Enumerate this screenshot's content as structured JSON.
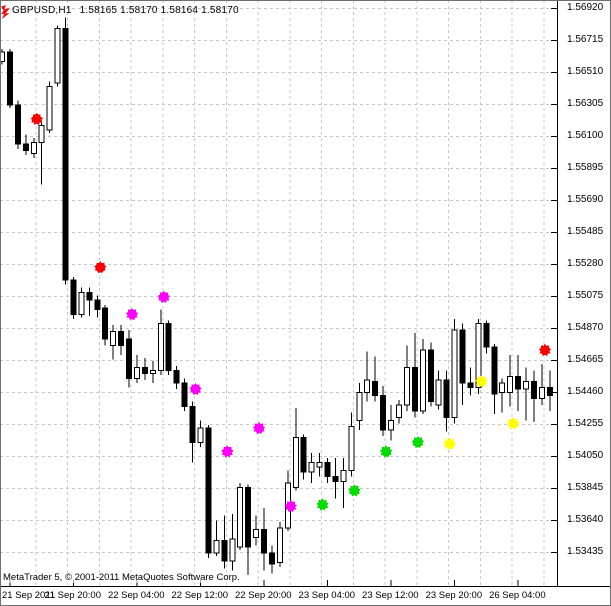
{
  "header": {
    "symbol_timeframe": "GBPUSD,H1",
    "quote_line": "1.58165 1.58170 1.58164 1.58170"
  },
  "copyright": "MetaTrader 5, © 2001-2011 MetaQuotes Software Corp.",
  "y_axis": {
    "labels": [
      "1.56920",
      "1.56715",
      "1.56510",
      "1.56305",
      "1.56100",
      "1.55895",
      "1.55690",
      "1.55485",
      "1.55280",
      "1.55075",
      "1.54870",
      "1.54665",
      "1.54460",
      "1.54255",
      "1.54050",
      "1.53845",
      "1.53640",
      "1.53435"
    ]
  },
  "x_axis": {
    "labels": [
      {
        "text": "21 Sep 2011",
        "index": 1
      },
      {
        "text": "21 Sep 20:00",
        "index": 9
      },
      {
        "text": "22 Sep 04:00",
        "index": 17
      },
      {
        "text": "22 Sep 12:00",
        "index": 25
      },
      {
        "text": "22 Sep 20:00",
        "index": 33
      },
      {
        "text": "23 Sep 04:00",
        "index": 41
      },
      {
        "text": "23 Sep 12:00",
        "index": 49
      },
      {
        "text": "23 Sep 20:00",
        "index": 57
      },
      {
        "text": "26 Sep 04:00",
        "index": 65
      }
    ]
  },
  "chart_data": {
    "type": "candlestick",
    "title": "GBPUSD,H1",
    "symbol": "GBPUSD",
    "timeframe": "H1",
    "header_quotes": {
      "open": "1.58165",
      "high": "1.58170",
      "low": "1.58164",
      "close": "1.58170"
    },
    "ylim": [
      1.53435,
      1.5692
    ],
    "y_step": 0.00205,
    "grid": true,
    "grid_color": "#c8c8c8",
    "bull_color": "#ffffff",
    "bear_color": "#000000",
    "outline_color": "#000000",
    "candles": [
      [
        "21 Sep 11:00",
        1.5658,
        1.5666,
        1.5656,
        1.5664
      ],
      [
        "21 Sep 12:00",
        1.5664,
        1.5666,
        1.5628,
        1.563
      ],
      [
        "21 Sep 13:00",
        1.563,
        1.5633,
        1.5602,
        1.5605
      ],
      [
        "21 Sep 14:00",
        1.5605,
        1.5611,
        1.5598,
        1.5601
      ],
      [
        "21 Sep 15:00",
        1.5599,
        1.5609,
        1.5596,
        1.5606
      ],
      [
        "21 Sep 16:00",
        1.5606,
        1.562,
        1.5579,
        1.5617
      ],
      [
        "21 Sep 17:00",
        1.5614,
        1.5645,
        1.5612,
        1.5642
      ],
      [
        "21 Sep 18:00",
        1.5644,
        1.5681,
        1.5642,
        1.5679
      ],
      [
        "21 Sep 19:00",
        1.5679,
        1.5686,
        1.5515,
        1.5518
      ],
      [
        "21 Sep 20:00",
        1.5518,
        1.552,
        1.5493,
        1.5496
      ],
      [
        "21 Sep 21:00",
        1.5496,
        1.5513,
        1.5494,
        1.551
      ],
      [
        "21 Sep 22:00",
        1.551,
        1.5513,
        1.5495,
        1.5505
      ],
      [
        "21 Sep 23:00",
        1.5505,
        1.5508,
        1.5494,
        1.5499
      ],
      [
        "22 Sep 00:00",
        1.55,
        1.5502,
        1.5476,
        1.548
      ],
      [
        "22 Sep 01:00",
        1.5476,
        1.5489,
        1.5467,
        1.5485
      ],
      [
        "22 Sep 02:00",
        1.5485,
        1.5489,
        1.547,
        1.5476
      ],
      [
        "22 Sep 03:00",
        1.548,
        1.5486,
        1.5449,
        1.5455
      ],
      [
        "22 Sep 04:00",
        1.5455,
        1.547,
        1.5452,
        1.5462
      ],
      [
        "22 Sep 05:00",
        1.5462,
        1.5468,
        1.5454,
        1.5458
      ],
      [
        "22 Sep 06:00",
        1.5458,
        1.5466,
        1.5452,
        1.546
      ],
      [
        "22 Sep 07:00",
        1.546,
        1.5499,
        1.5457,
        1.549
      ],
      [
        "22 Sep 08:00",
        1.549,
        1.5492,
        1.5457,
        1.546
      ],
      [
        "22 Sep 09:00",
        1.546,
        1.5463,
        1.5448,
        1.5452
      ],
      [
        "22 Sep 10:00",
        1.5452,
        1.5455,
        1.5434,
        1.5437
      ],
      [
        "22 Sep 11:00",
        1.5437,
        1.544,
        1.5401,
        1.5414
      ],
      [
        "22 Sep 12:00",
        1.5414,
        1.5428,
        1.5411,
        1.5423
      ],
      [
        "22 Sep 13:00",
        1.5423,
        1.5425,
        1.534,
        1.5343
      ],
      [
        "22 Sep 14:00",
        1.5343,
        1.5364,
        1.5341,
        1.5351
      ],
      [
        "22 Sep 15:00",
        1.5351,
        1.5367,
        1.5333,
        1.5338
      ],
      [
        "22 Sep 16:00",
        1.5338,
        1.5368,
        1.5332,
        1.5352
      ],
      [
        "22 Sep 17:00",
        1.5347,
        1.5388,
        1.5345,
        1.5385
      ],
      [
        "22 Sep 18:00",
        1.5385,
        1.5387,
        1.5329,
        1.5347
      ],
      [
        "22 Sep 19:00",
        1.5353,
        1.5367,
        1.5348,
        1.5358
      ],
      [
        "22 Sep 20:00",
        1.5358,
        1.5372,
        1.5332,
        1.5343
      ],
      [
        "22 Sep 21:00",
        1.5343,
        1.5348,
        1.533,
        1.5336
      ],
      [
        "22 Sep 22:00",
        1.5337,
        1.5363,
        1.5334,
        1.5359
      ],
      [
        "22 Sep 23:00",
        1.5359,
        1.5396,
        1.5357,
        1.5388
      ],
      [
        "23 Sep 00:00",
        1.5385,
        1.5436,
        1.5383,
        1.5417
      ],
      [
        "23 Sep 01:00",
        1.5417,
        1.5419,
        1.539,
        1.5395
      ],
      [
        "23 Sep 02:00",
        1.5395,
        1.5407,
        1.5388,
        1.5401
      ],
      [
        "23 Sep 03:00",
        1.5398,
        1.5407,
        1.5392,
        1.5401
      ],
      [
        "23 Sep 04:00",
        1.5401,
        1.5404,
        1.5388,
        1.5392
      ],
      [
        "23 Sep 05:00",
        1.5392,
        1.5404,
        1.5378,
        1.5389
      ],
      [
        "23 Sep 06:00",
        1.5389,
        1.5404,
        1.5372,
        1.5396
      ],
      [
        "23 Sep 07:00",
        1.5396,
        1.5433,
        1.5392,
        1.5424
      ],
      [
        "23 Sep 08:00",
        1.5428,
        1.5452,
        1.5422,
        1.5446
      ],
      [
        "23 Sep 09:00",
        1.5446,
        1.5472,
        1.544,
        1.5454
      ],
      [
        "23 Sep 10:00",
        1.5453,
        1.5469,
        1.544,
        1.5444
      ],
      [
        "23 Sep 11:00",
        1.5444,
        1.545,
        1.5418,
        1.5422
      ],
      [
        "23 Sep 12:00",
        1.5422,
        1.5438,
        1.5415,
        1.5428
      ],
      [
        "23 Sep 13:00",
        1.543,
        1.5441,
        1.5426,
        1.5438
      ],
      [
        "23 Sep 14:00",
        1.5438,
        1.5476,
        1.5434,
        1.5462
      ],
      [
        "23 Sep 15:00",
        1.5462,
        1.5484,
        1.543,
        1.5434
      ],
      [
        "23 Sep 16:00",
        1.5434,
        1.548,
        1.5432,
        1.5473
      ],
      [
        "23 Sep 17:00",
        1.5473,
        1.5478,
        1.5437,
        1.544
      ],
      [
        "23 Sep 18:00",
        1.5438,
        1.546,
        1.5435,
        1.5454
      ],
      [
        "23 Sep 19:00",
        1.5454,
        1.546,
        1.5421,
        1.543
      ],
      [
        "23 Sep 20:00",
        1.543,
        1.5493,
        1.5426,
        1.5486
      ],
      [
        "23 Sep 21:00",
        1.5486,
        1.549,
        1.5438,
        1.5452
      ],
      [
        "23 Sep 22:00",
        1.5452,
        1.5462,
        1.5444,
        1.5449
      ],
      [
        "23 Sep 23:00",
        1.5449,
        1.5493,
        1.5445,
        1.549
      ],
      [
        "26 Sep 00:00",
        1.549,
        1.5492,
        1.5471,
        1.5475
      ],
      [
        "26 Sep 01:00",
        1.5475,
        1.5477,
        1.5432,
        1.5445
      ],
      [
        "26 Sep 02:00",
        1.5446,
        1.5455,
        1.5433,
        1.5452
      ],
      [
        "26 Sep 03:00",
        1.5446,
        1.547,
        1.5437,
        1.5456
      ],
      [
        "26 Sep 04:00",
        1.5456,
        1.547,
        1.5434,
        1.5448
      ],
      [
        "26 Sep 05:00",
        1.5448,
        1.5462,
        1.5428,
        1.5453
      ],
      [
        "26 Sep 06:00",
        1.5453,
        1.546,
        1.5427,
        1.5442
      ],
      [
        "26 Sep 07:00",
        1.5442,
        1.5464,
        1.5438,
        1.5449
      ],
      [
        "26 Sep 08:00",
        1.5449,
        1.546,
        1.5434,
        1.5444
      ]
    ],
    "signal_dots": [
      {
        "time": "21 Sep 15:00",
        "index": 4,
        "price": 1.5621,
        "color": "#ff0000"
      },
      {
        "time": "21 Sep 23:00",
        "index": 12,
        "price": 1.5526,
        "color": "#ff0000"
      },
      {
        "time": "22 Sep 03:00",
        "index": 16,
        "price": 1.5496,
        "color": "#ff00ff"
      },
      {
        "time": "22 Sep 07:00",
        "index": 20,
        "price": 1.5507,
        "color": "#ff00ff"
      },
      {
        "time": "22 Sep 11:00",
        "index": 24,
        "price": 1.5448,
        "color": "#ff00ff"
      },
      {
        "time": "22 Sep 15:00",
        "index": 28,
        "price": 1.5408,
        "color": "#ff00ff"
      },
      {
        "time": "22 Sep 19:00",
        "index": 32,
        "price": 1.5423,
        "color": "#ff00ff"
      },
      {
        "time": "22 Sep 23:00",
        "index": 36,
        "price": 1.5373,
        "color": "#ff00ff"
      },
      {
        "time": "23 Sep 03:00",
        "index": 40,
        "price": 1.5374,
        "color": "#00dd00"
      },
      {
        "time": "23 Sep 07:00",
        "index": 44,
        "price": 1.5383,
        "color": "#00dd00"
      },
      {
        "time": "23 Sep 11:00",
        "index": 48,
        "price": 1.5408,
        "color": "#00dd00"
      },
      {
        "time": "23 Sep 15:00",
        "index": 52,
        "price": 1.5414,
        "color": "#00dd00"
      },
      {
        "time": "23 Sep 19:00",
        "index": 56,
        "price": 1.5413,
        "color": "#ffff00"
      },
      {
        "time": "23 Sep 23:00",
        "index": 60,
        "price": 1.5453,
        "color": "#ffff00"
      },
      {
        "time": "26 Sep 03:00",
        "index": 64,
        "price": 1.5426,
        "color": "#ffff00"
      },
      {
        "time": "26 Sep 07:00",
        "index": 68,
        "price": 1.5473,
        "color": "#ff0000"
      }
    ]
  }
}
